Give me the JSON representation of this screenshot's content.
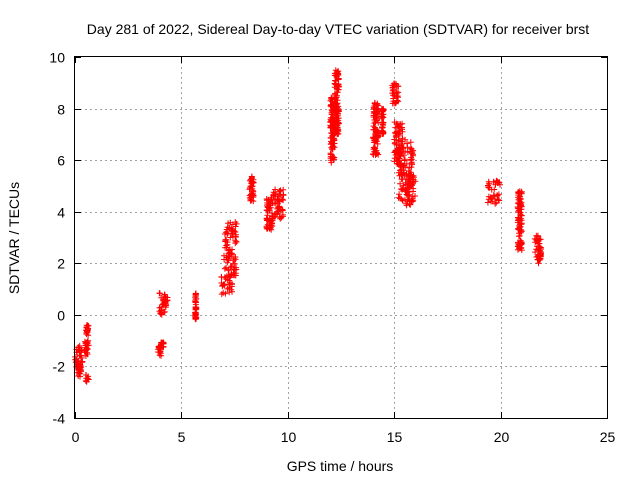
{
  "chart_data": {
    "type": "scatter",
    "title": "Day 281 of 2022, Sidereal Day-to-day VTEC variation (SDTVAR) for receiver brst",
    "xlabel": "GPS time / hours",
    "ylabel": "SDTVAR / TECUs",
    "xlim": [
      0,
      25
    ],
    "ylim": [
      -4,
      10
    ],
    "xticks": [
      0,
      5,
      10,
      15,
      20,
      25
    ],
    "yticks": [
      -4,
      -2,
      0,
      2,
      4,
      6,
      8,
      10
    ],
    "grid": true,
    "marker": "+",
    "series": [
      {
        "name": "SDTVAR",
        "color": "#ff0000",
        "clusters": [
          {
            "x0": 0.0,
            "x1": 0.35,
            "y0": -2.4,
            "y1": -1.2
          },
          {
            "x0": 0.45,
            "x1": 0.65,
            "y0": -1.6,
            "y1": -1.0
          },
          {
            "x0": 0.5,
            "x1": 0.65,
            "y0": -2.6,
            "y1": -2.3
          },
          {
            "x0": 0.5,
            "x1": 0.65,
            "y0": -0.8,
            "y1": -0.4
          },
          {
            "x0": 3.9,
            "x1": 4.05,
            "y0": -1.6,
            "y1": -1.2
          },
          {
            "x0": 4.0,
            "x1": 4.2,
            "y0": -1.3,
            "y1": -1.05
          },
          {
            "x0": 3.95,
            "x1": 4.35,
            "y0": 0.0,
            "y1": 0.85
          },
          {
            "x0": 5.65,
            "x1": 5.7,
            "y0": -0.2,
            "y1": 0.85
          },
          {
            "x0": 6.8,
            "x1": 7.4,
            "y0": 0.8,
            "y1": 1.6
          },
          {
            "x0": 7.0,
            "x1": 7.6,
            "y0": 1.5,
            "y1": 3.6
          },
          {
            "x0": 8.2,
            "x1": 8.4,
            "y0": 4.4,
            "y1": 5.4
          },
          {
            "x0": 9.0,
            "x1": 9.3,
            "y0": 3.3,
            "y1": 4.6
          },
          {
            "x0": 9.3,
            "x1": 9.8,
            "y0": 3.7,
            "y1": 4.9
          },
          {
            "x0": 12.0,
            "x1": 12.2,
            "y0": 5.9,
            "y1": 8.5
          },
          {
            "x0": 12.2,
            "x1": 12.4,
            "y0": 7.0,
            "y1": 9.5
          },
          {
            "x0": 14.0,
            "x1": 14.25,
            "y0": 6.2,
            "y1": 8.4
          },
          {
            "x0": 14.4,
            "x1": 14.5,
            "y0": 7.0,
            "y1": 8.0
          },
          {
            "x0": 14.9,
            "x1": 15.2,
            "y0": 8.2,
            "y1": 9.0
          },
          {
            "x0": 15.0,
            "x1": 15.4,
            "y0": 5.8,
            "y1": 7.5
          },
          {
            "x0": 15.2,
            "x1": 15.9,
            "y0": 4.2,
            "y1": 6.8
          },
          {
            "x0": 15.6,
            "x1": 16.0,
            "y0": 4.4,
            "y1": 5.4
          },
          {
            "x0": 19.4,
            "x1": 20.0,
            "y0": 4.3,
            "y1": 5.2
          },
          {
            "x0": 20.8,
            "x1": 21.0,
            "y0": 2.5,
            "y1": 4.8
          },
          {
            "x0": 21.6,
            "x1": 21.9,
            "y0": 2.0,
            "y1": 3.1
          }
        ],
        "points_per_cluster_note": "dense clusters of + markers"
      }
    ]
  }
}
